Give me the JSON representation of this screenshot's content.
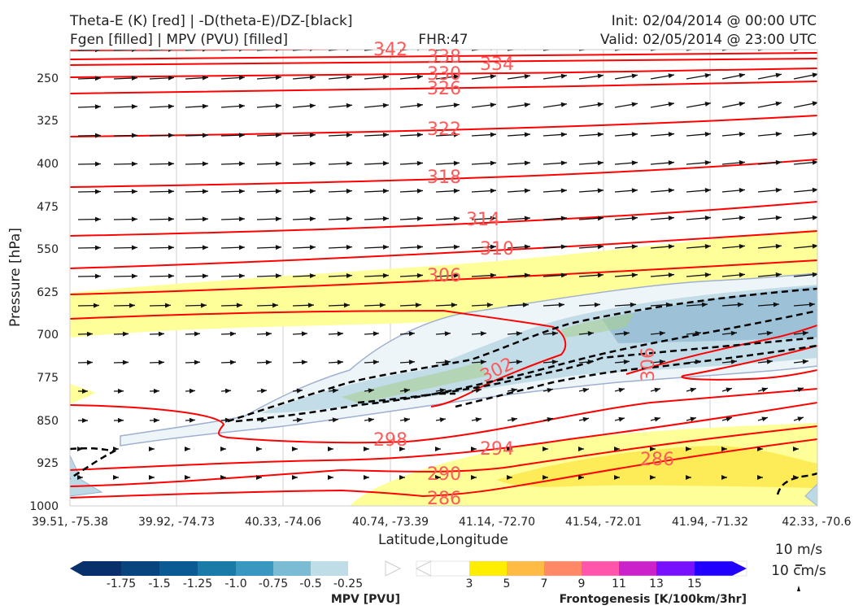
{
  "header": {
    "title_left_1": "Theta-E (K) [red] | -D(theta-E)/DZ-[black]",
    "title_left_2": "Fgen [filled] | MPV (PVU) [filled]",
    "fhr": "FHR:47",
    "init": "Init: 02/04/2014 @ 00:00 UTC",
    "valid": "Valid: 02/05/2014 @ 23:00 UTC"
  },
  "chart_data": {
    "type": "cross-section",
    "xlabel": "Latitude,Longitude",
    "ylabel": "Pressure [hPa]",
    "x_ticks": [
      "39.51, -75.38",
      "39.92, -74.73",
      "40.33, -74.06",
      "40.74, -73.39",
      "41.14, -72.70",
      "41.54, -72.01",
      "41.94, -71.32",
      "42.33, -70.6"
    ],
    "y_ticks": [
      250,
      325,
      400,
      475,
      550,
      625,
      700,
      775,
      850,
      925,
      1000
    ],
    "ylim": [
      1000,
      190
    ],
    "y_scale": "inverted linear pressure",
    "theta_e_contours": [
      {
        "label": "342",
        "x": 41.64,
        "pres": 195
      },
      {
        "label": "338",
        "x": 42.04,
        "pres": 202
      },
      {
        "label": "334",
        "x": 42.25,
        "pres": 207
      },
      {
        "label": "330",
        "x": 42.04,
        "pres": 235
      },
      {
        "label": "326",
        "x": 42.04,
        "pres": 257
      },
      {
        "label": "322",
        "x": 42.04,
        "pres": 357
      },
      {
        "label": "318",
        "x": 42.04,
        "pres": 422
      },
      {
        "label": "314",
        "x": 42.5,
        "pres": 487
      },
      {
        "label": "310",
        "x": 42.63,
        "pres": 555
      },
      {
        "label": "306",
        "x": 42.04,
        "pres": 617
      },
      {
        "label": "302",
        "x": 41.26,
        "pres": 762
      },
      {
        "label": "306",
        "x": 43.73,
        "pres": 760
      },
      {
        "label": "298",
        "x": 40.97,
        "pres": 893
      },
      {
        "label": "294",
        "x": 41.46,
        "pres": 898
      },
      {
        "label": "290",
        "x": 41.08,
        "pres": 960
      },
      {
        "label": "286",
        "x": 41.08,
        "pres": 990
      },
      {
        "label": "286",
        "x": 42.49,
        "pres": 940
      }
    ],
    "mpv_colorbar": {
      "title": "MPV [PVU]",
      "ticks": [
        "-1.75",
        "-1.5",
        "-1.25",
        "-1.0",
        "-0.75",
        "-0.5",
        "-0.25"
      ],
      "colors": [
        "#08306b",
        "#08457f",
        "#0b5a93",
        "#1a7aa8",
        "#3a98c0",
        "#7bbcd4",
        "#bfdde7",
        "#ffffff"
      ]
    },
    "fgen_colorbar": {
      "title": "Frontogenesis [K/100km/3hr]",
      "ticks": [
        "3",
        "5",
        "7",
        "9",
        "11",
        "13",
        "15"
      ],
      "colors": [
        "#ffffff",
        "#ffee00",
        "#ffbb44",
        "#ff8866",
        "#ff55aa",
        "#cc22cc",
        "#7711ff",
        "#2200ff"
      ]
    },
    "reference_vectors": [
      "10 m/s",
      "10 cm/s"
    ],
    "colors": {
      "theta_e": "#ff0000",
      "theta_e_label": "#ff5a5a",
      "stability": "#000000",
      "fgen_light": "#ffff99",
      "fgen_mid": "#fde74c",
      "mpv_light": "#eef5f8",
      "mpv_mid": "#bcd9e6",
      "mpv_dark": "#93bcd3"
    }
  }
}
